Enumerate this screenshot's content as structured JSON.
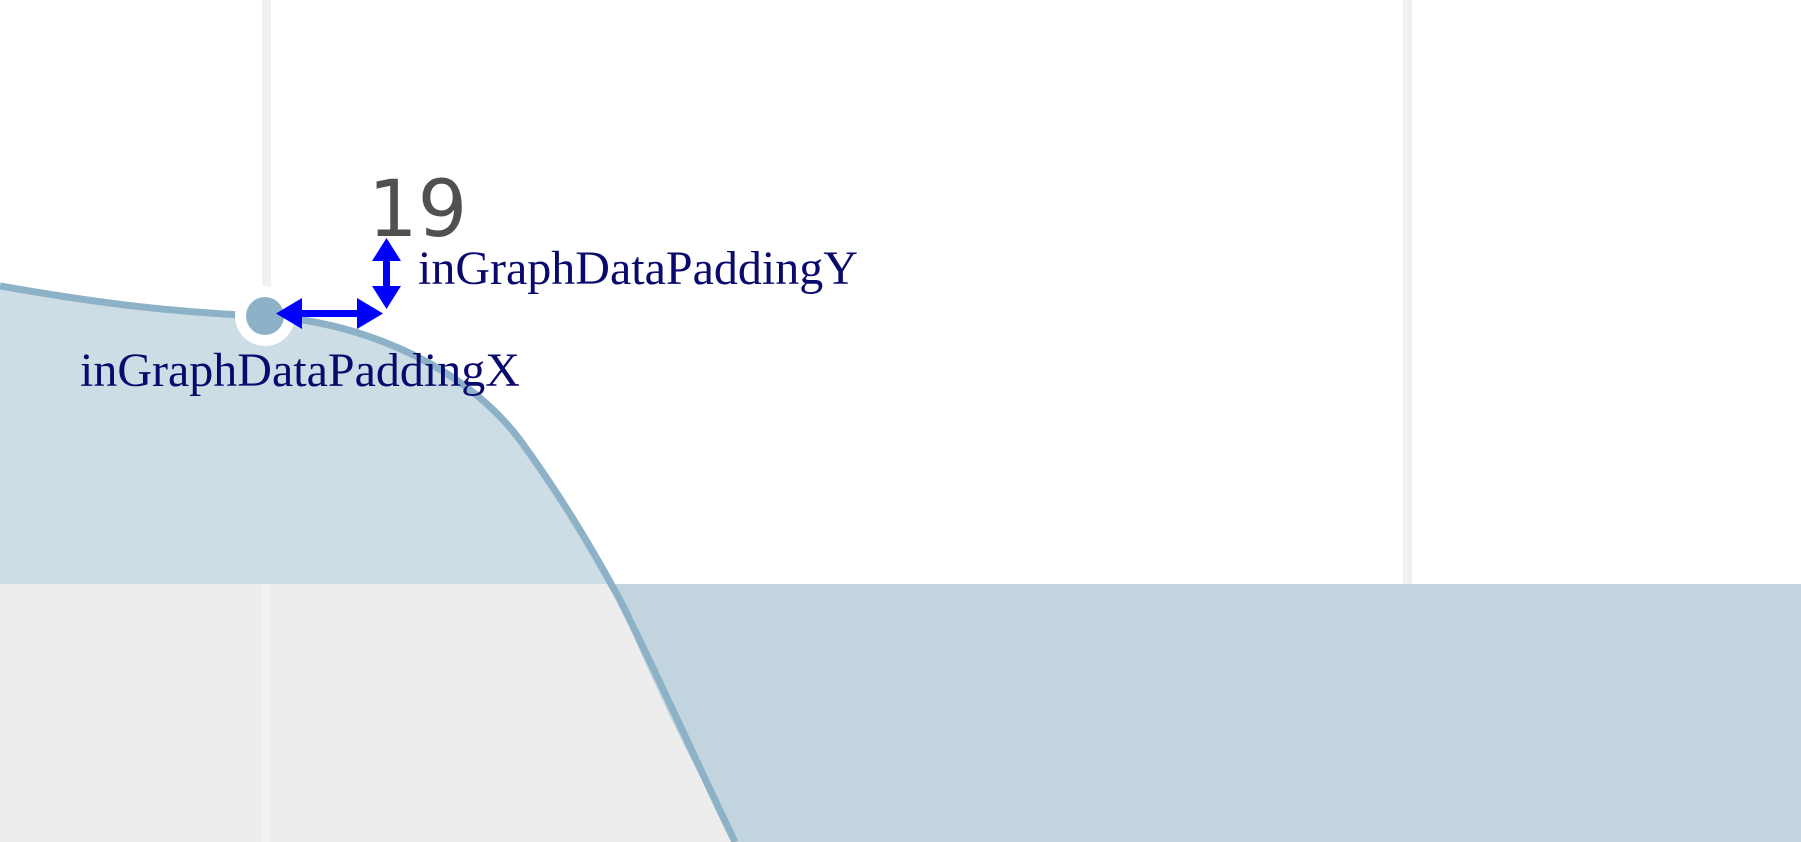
{
  "diagram": {
    "data_label": "19",
    "annotations": {
      "padding_y": "inGraphDataPaddingY",
      "padding_x": "inGraphDataPaddingX"
    },
    "colors": {
      "area_fill": "#ccdde6",
      "area_fill_lower": "#c2d4de",
      "line": "#8db1c6",
      "point": "#8db1c6",
      "lower_band": "#ededed",
      "gridline": "#f1f1f1",
      "arrow": "#0000ff",
      "annotation_text": "#0a0a6e",
      "data_label_text": "#505050"
    },
    "icons": {
      "horizontal_arrow": "double-headed-horizontal-arrow",
      "vertical_arrow": "double-headed-vertical-arrow"
    }
  }
}
